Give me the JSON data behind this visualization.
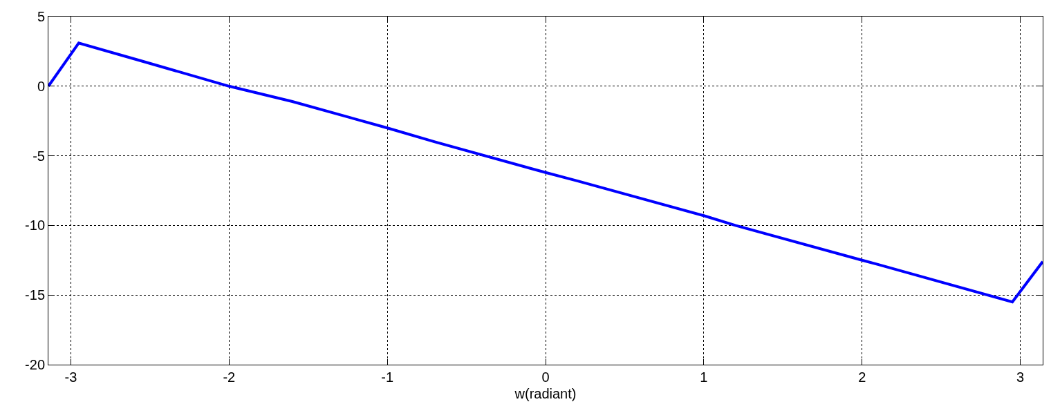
{
  "chart_data": {
    "type": "line",
    "xlabel": "w(radiant)",
    "x": [
      -3.1416,
      -2.95,
      -2.55,
      -2,
      -1.6,
      -1,
      -0.7,
      0,
      0.2,
      1,
      1.2,
      2,
      2.1,
      2.95,
      3.1416
    ],
    "series": [
      {
        "color": "#0000ff",
        "values": [
          0,
          3.1,
          1.8,
          0.0,
          -1.1,
          -3.0,
          -4.0,
          -6.2,
          -6.8,
          -9.3,
          -10.0,
          -12.5,
          -12.8,
          -15.5,
          -12.6
        ]
      }
    ],
    "xlim": [
      -3.1416,
      3.1416
    ],
    "ylim": [
      -20,
      5
    ],
    "xticks": [
      -3,
      -2,
      -1,
      0,
      1,
      2,
      3
    ],
    "yticks": [
      -20,
      -15,
      -10,
      -5,
      0,
      5
    ],
    "grid": true,
    "marker": "none",
    "line_style": "solid",
    "legend": false
  }
}
